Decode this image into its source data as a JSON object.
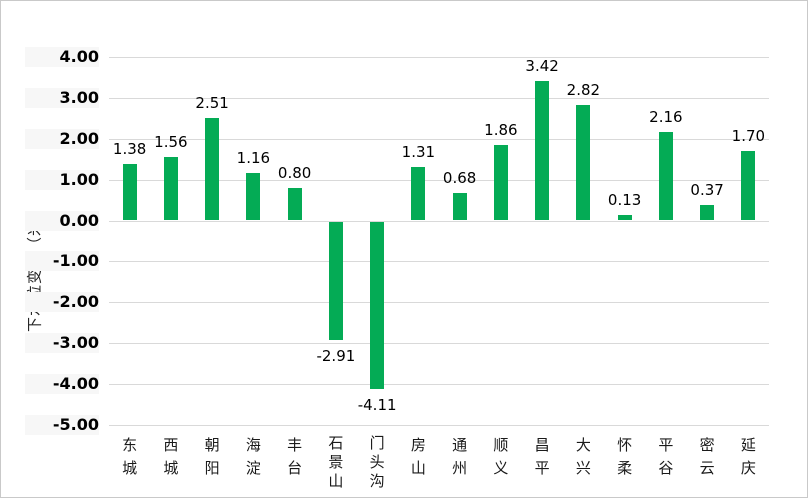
{
  "chart_data": {
    "type": "bar",
    "title": "",
    "xlabel": "",
    "ylabel": "地下水位变幅（米）",
    "categories": [
      "东城",
      "西城",
      "朝阳",
      "海淀",
      "丰台",
      "石景山",
      "门头沟",
      "房山",
      "通州",
      "顺义",
      "昌平",
      "大兴",
      "怀柔",
      "平谷",
      "密云",
      "延庆"
    ],
    "values": [
      1.38,
      1.56,
      2.51,
      1.16,
      0.8,
      -2.91,
      -4.11,
      1.31,
      0.68,
      1.86,
      3.42,
      2.82,
      0.13,
      2.16,
      0.37,
      1.7
    ],
    "value_labels": [
      "1.38",
      "1.56",
      "2.51",
      "1.16",
      "0.80",
      "-2.91",
      "-4.11",
      "1.31",
      "0.68",
      "1.86",
      "3.42",
      "2.82",
      "0.13",
      "2.16",
      "0.37",
      "1.70"
    ],
    "y_ticks": [
      "4.00",
      "3.00",
      "2.00",
      "1.00",
      "0.00",
      "-1.00",
      "-2.00",
      "-3.00",
      "-4.00",
      "-5.00"
    ],
    "y_tick_values": [
      4,
      3,
      2,
      1,
      0,
      -1,
      -2,
      -3,
      -4,
      -5
    ],
    "ylim": [
      -5,
      4
    ],
    "grid": true,
    "legend_position": "none",
    "bar_color": "#04ab55",
    "gridline_color": "#d9d9d9"
  }
}
